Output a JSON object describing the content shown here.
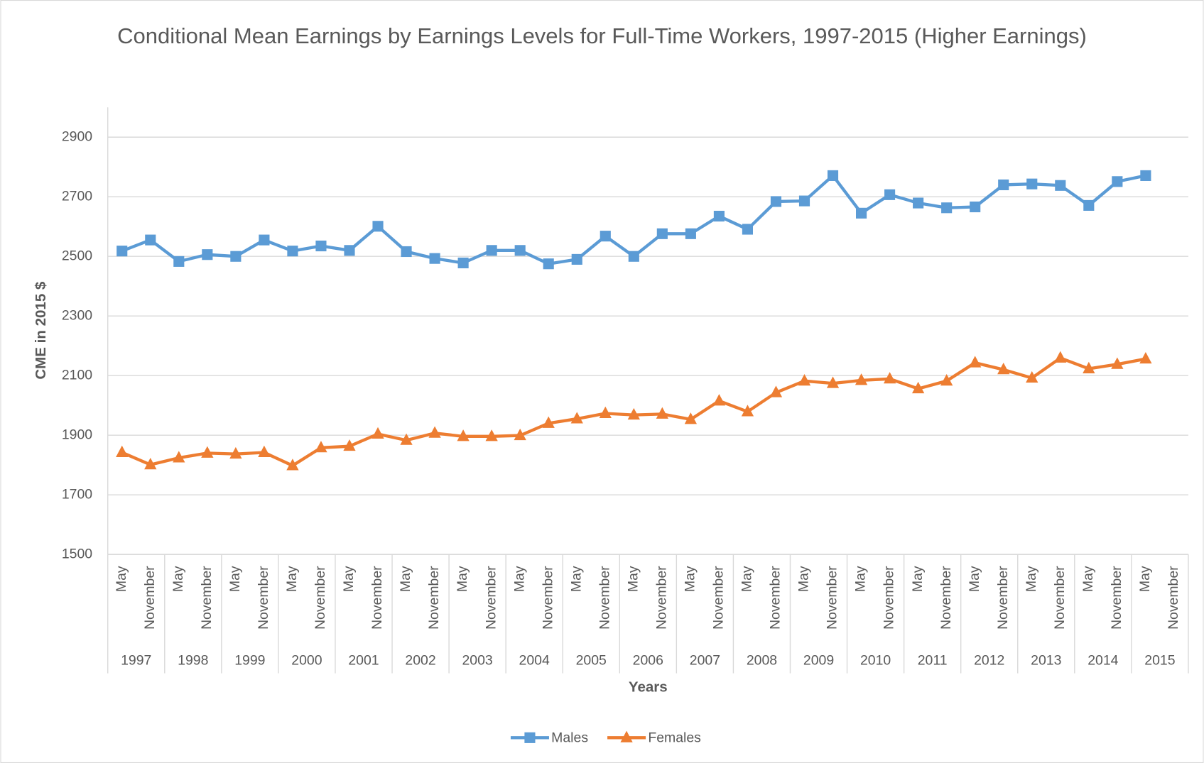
{
  "chart_data": {
    "type": "line",
    "title": "Conditional Mean Earnings by Earnings Levels for Full-Time Workers, 1997-2015 (Higher Earnings)",
    "x_label": "Years",
    "y_label": "CME in 2015 $",
    "categories": [
      "May",
      "November",
      "May",
      "November",
      "May",
      "November",
      "May",
      "November",
      "May",
      "November",
      "May",
      "November",
      "May",
      "November",
      "May",
      "November",
      "May",
      "November",
      "May",
      "November",
      "May",
      "November",
      "May",
      "November",
      "May",
      "November",
      "May",
      "November",
      "May",
      "November",
      "May",
      "November",
      "May",
      "November",
      "May",
      "November",
      "May",
      "November"
    ],
    "category_groups": [
      "1997",
      "1998",
      "1999",
      "2000",
      "2001",
      "2002",
      "2003",
      "2004",
      "2005",
      "2006",
      "2007",
      "2008",
      "2009",
      "2010",
      "2011",
      "2012",
      "2013",
      "2014",
      "2015"
    ],
    "series": [
      {
        "name": "Males",
        "color": "#5b9bd5",
        "marker": "square",
        "values": [
          2518,
          2555,
          2483,
          2506,
          2500,
          2555,
          2518,
          2535,
          2520,
          2601,
          2516,
          2493,
          2478,
          2520,
          2520,
          2475,
          2490,
          2568,
          2500,
          2576,
          2576,
          2635,
          2591,
          2684,
          2686,
          2771,
          2645,
          2707,
          2679,
          2663,
          2666,
          2740,
          2743,
          2738,
          2671,
          2751,
          2771,
          null
        ]
      },
      {
        "name": "Females",
        "color": "#ed7d31",
        "marker": "triangle",
        "values": [
          1842,
          1801,
          1824,
          1840,
          1837,
          1842,
          1798,
          1858,
          1863,
          1904,
          1883,
          1907,
          1896,
          1896,
          1899,
          1940,
          1955,
          1973,
          1968,
          1971,
          1953,
          2015,
          1979,
          2043,
          2082,
          2074,
          2084,
          2089,
          2056,
          2082,
          2143,
          2120,
          2092,
          2159,
          2123,
          2138,
          2156,
          null
        ]
      }
    ],
    "ylim": [
      1500,
      3000
    ],
    "yticks": [
      1500,
      1700,
      1900,
      2100,
      2300,
      2500,
      2700,
      2900
    ],
    "grid": true,
    "legend": "bottom"
  }
}
